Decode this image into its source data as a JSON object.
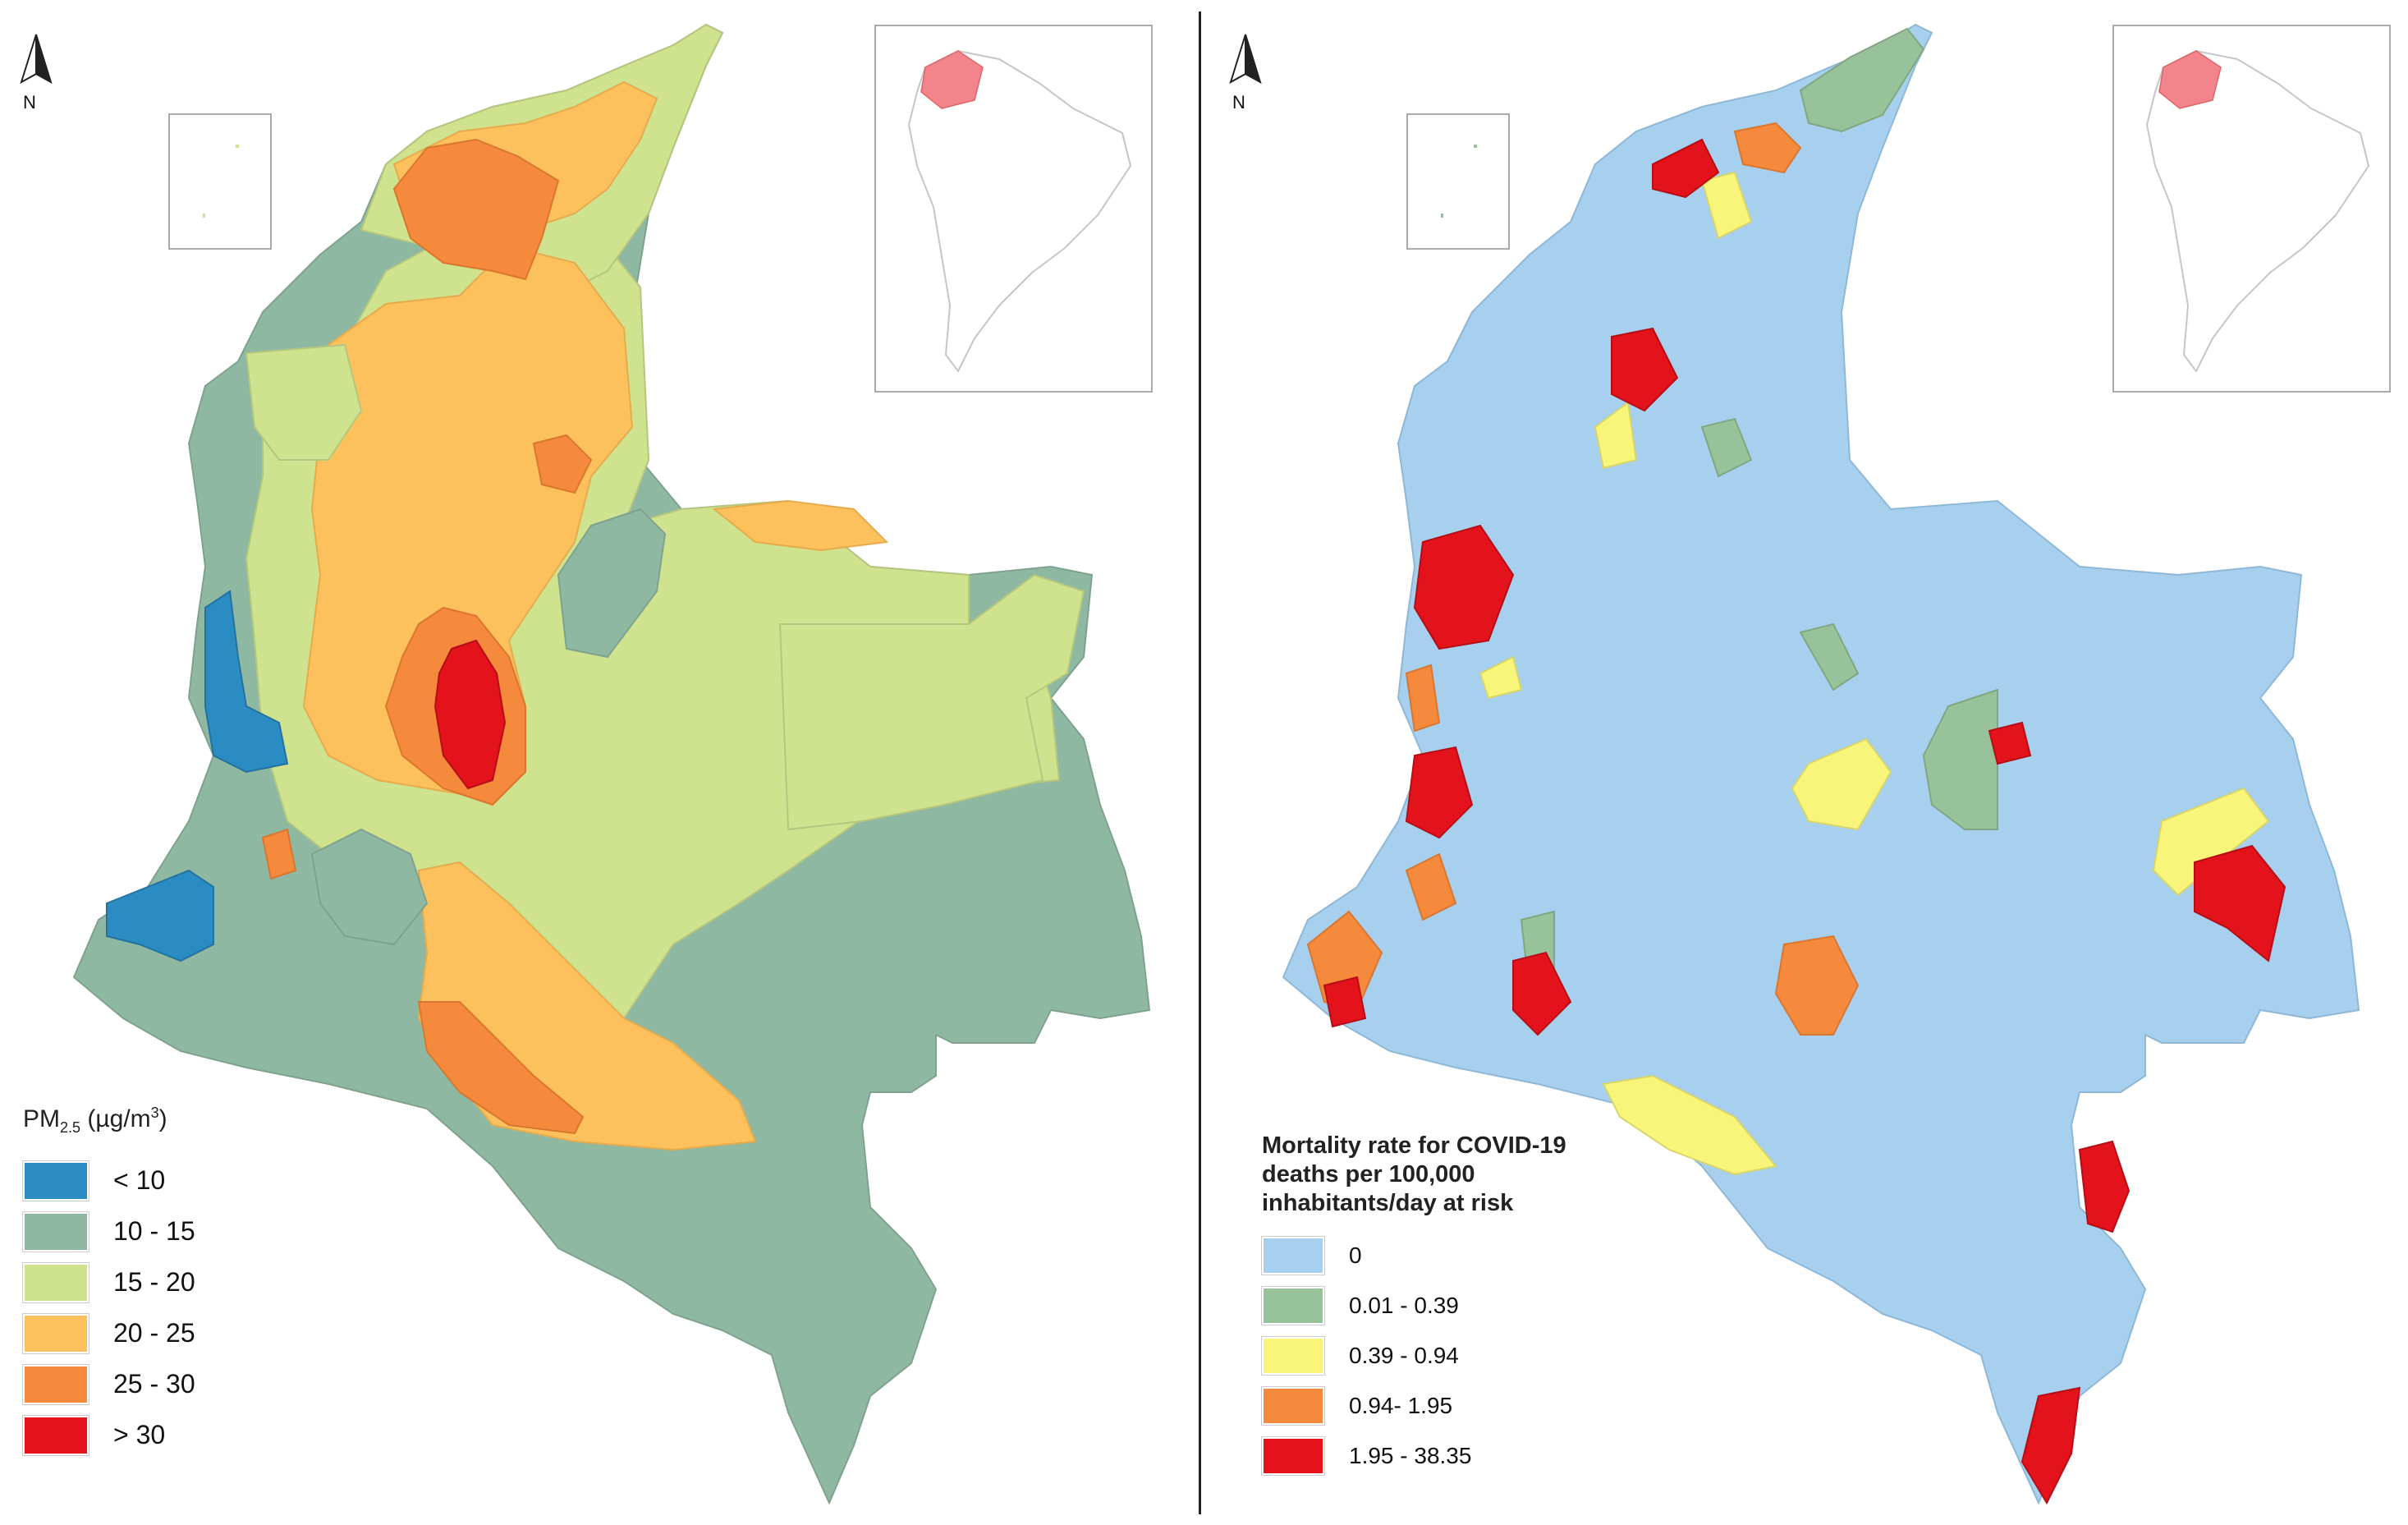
{
  "left_map": {
    "north_label": "N",
    "legend": {
      "title_main": "PM",
      "title_sub": "2.5",
      "title_unit_pre": " (µg/m",
      "title_unit_sup": "3",
      "title_unit_post": ")",
      "items": [
        {
          "label": "< 10",
          "color": "#2b8cc4"
        },
        {
          "label": "10 - 15",
          "color": "#8fb8a3"
        },
        {
          "label": "15 - 20",
          "color": "#cfe28e"
        },
        {
          "label": "20 - 25",
          "color": "#fcc15c"
        },
        {
          "label": "25 - 30",
          "color": "#f58a3c"
        },
        {
          "label": "> 30",
          "color": "#e3121b"
        }
      ]
    }
  },
  "right_map": {
    "north_label": "N",
    "legend": {
      "title_lines": [
        "Mortality rate for COVID-19",
        "deaths per 100,000",
        "inhabitants/day at risk"
      ],
      "items": [
        {
          "label": "0",
          "color": "#a7d0ee"
        },
        {
          "label": "0.01 - 0.39",
          "color": "#98c29a"
        },
        {
          "label": "0.39 - 0.94",
          "color": "#f8f57a"
        },
        {
          "label": "0.94- 1.95",
          "color": "#f58a3c"
        },
        {
          "label": "1.95 - 38.35",
          "color": "#e3121b"
        }
      ]
    }
  },
  "inset_highlight_color": "#f4848c"
}
